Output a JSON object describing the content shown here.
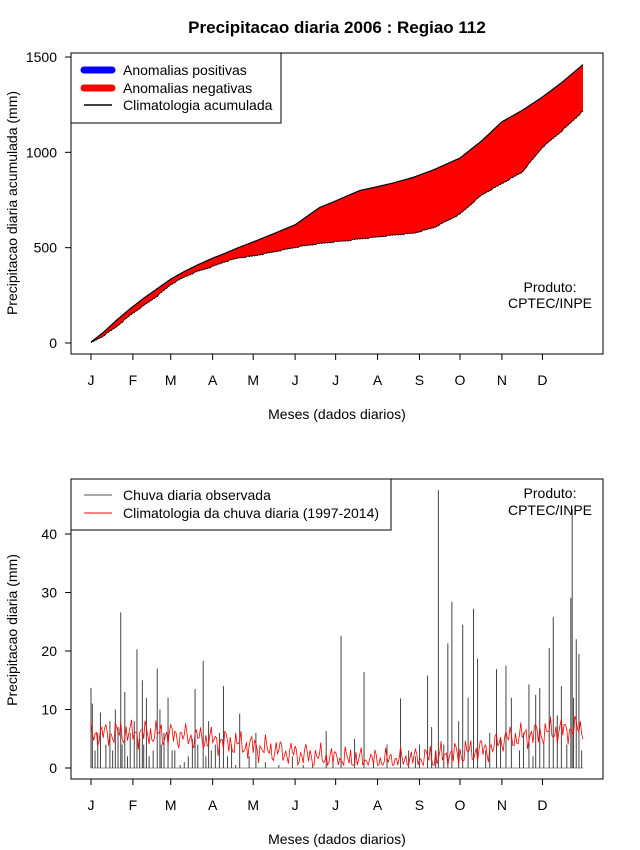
{
  "title": "Precipitacao diaria 2006 : Regiao 112",
  "chart_data": [
    {
      "type": "area",
      "ylabel": "Precipitacao diaria acumulada (mm)",
      "xlabel": "Meses (dados diarios)",
      "ylim": [
        0,
        1500
      ],
      "xlim": [
        1,
        365
      ],
      "yticks": [
        0,
        500,
        1000,
        1500
      ],
      "month_labels": [
        "J",
        "F",
        "M",
        "A",
        "M",
        "J",
        "J",
        "A",
        "S",
        "O",
        "N",
        "D"
      ],
      "month_start_days": [
        1,
        32,
        60,
        91,
        121,
        152,
        182,
        213,
        244,
        274,
        305,
        335
      ],
      "legend": {
        "position": "top-left",
        "items": [
          "Anomalias positivas",
          "Anomalias negativas",
          "Climatologia acumulada"
        ],
        "colors": [
          "#0000ff",
          "#ff0000",
          "#000000"
        ]
      },
      "annotation": [
        "Produto:",
        "CPTEC/INPE"
      ],
      "climatology_days": [
        1,
        10,
        20,
        30,
        40,
        50,
        60,
        70,
        80,
        91,
        100,
        110,
        121,
        135,
        152,
        160,
        170,
        182,
        190,
        200,
        213,
        225,
        240,
        255,
        274,
        290,
        305,
        320,
        335,
        350,
        365
      ],
      "climatology_values": [
        5,
        55,
        120,
        180,
        235,
        285,
        335,
        375,
        410,
        445,
        470,
        500,
        530,
        570,
        620,
        660,
        710,
        745,
        770,
        800,
        820,
        840,
        870,
        910,
        970,
        1060,
        1160,
        1220,
        1290,
        1370,
        1460
      ],
      "observed_days": [
        1,
        10,
        20,
        30,
        40,
        50,
        60,
        70,
        80,
        91,
        100,
        110,
        121,
        135,
        152,
        160,
        170,
        182,
        190,
        200,
        213,
        225,
        240,
        255,
        274,
        290,
        305,
        320,
        335,
        350,
        365
      ],
      "observed_values": [
        5,
        40,
        90,
        150,
        200,
        250,
        310,
        350,
        380,
        405,
        430,
        450,
        460,
        480,
        505,
        515,
        525,
        535,
        540,
        550,
        560,
        570,
        580,
        610,
        680,
        780,
        840,
        900,
        1030,
        1120,
        1220
      ]
    },
    {
      "type": "bar",
      "ylabel": "Precipitacao diaria (mm)",
      "xlabel": "Meses (dados diarios)",
      "ylim": [
        0,
        48
      ],
      "xlim": [
        1,
        365
      ],
      "yticks": [
        0,
        10,
        20,
        30,
        40
      ],
      "month_labels": [
        "J",
        "F",
        "M",
        "A",
        "M",
        "J",
        "J",
        "A",
        "S",
        "O",
        "N",
        "D"
      ],
      "month_start_days": [
        1,
        32,
        60,
        91,
        121,
        152,
        182,
        213,
        244,
        274,
        305,
        335
      ],
      "legend": {
        "position": "top-left",
        "items": [
          "Chuva diaria observada",
          "Climatologia da chuva diaria (1997-2014)"
        ],
        "colors": [
          "#555555",
          "#ff0000"
        ]
      },
      "annotation": [
        "Produto:",
        "CPTEC/INPE"
      ],
      "observed_days": [
        1,
        2,
        4,
        6,
        8,
        12,
        15,
        17,
        19,
        21,
        23,
        24,
        26,
        28,
        30,
        33,
        35,
        37,
        39,
        40,
        42,
        44,
        47,
        50,
        52,
        53,
        55,
        58,
        61,
        63,
        67,
        70,
        73,
        76,
        78,
        80,
        84,
        86,
        88,
        90,
        93,
        96,
        99,
        102,
        105,
        108,
        111,
        118,
        123,
        130,
        140,
        150,
        158,
        165,
        175,
        180,
        186,
        196,
        203,
        210,
        220,
        230,
        236,
        241,
        244,
        250,
        253,
        256,
        258,
        262,
        265,
        268,
        273,
        276,
        280,
        284,
        287,
        293,
        296,
        301,
        304,
        308,
        312,
        318,
        321,
        325,
        328,
        330,
        333,
        336,
        340,
        343,
        346,
        349,
        353,
        356,
        357,
        358,
        360,
        362,
        364
      ],
      "observed_values": [
        13.7,
        11,
        3,
        6,
        9.5,
        4,
        8,
        3,
        10,
        7,
        26.6,
        4,
        13,
        2,
        6,
        8,
        20.3,
        5,
        15,
        4,
        12,
        2,
        3,
        17,
        10,
        4,
        6,
        12,
        3,
        3,
        0.5,
        1,
        2,
        5,
        13.5,
        4,
        18.3,
        2,
        8,
        3,
        4,
        6,
        14,
        2,
        4,
        0.5,
        9.3,
        2,
        6,
        1,
        0.5,
        2,
        0.5,
        0.5,
        6.3,
        1,
        22.6,
        5,
        16.4,
        1,
        4,
        11.9,
        3,
        2,
        4,
        15.8,
        7,
        3,
        47.5,
        4,
        21.3,
        28.4,
        8,
        24.5,
        12,
        27.2,
        18.7,
        3,
        6,
        16.9,
        5,
        17.5,
        12,
        3,
        6,
        14.3,
        2,
        12.5,
        13.7,
        4,
        20.5,
        25.8,
        9,
        14,
        4,
        29.1,
        44.2,
        12,
        22,
        19.5,
        3
      ]
    }
  ]
}
